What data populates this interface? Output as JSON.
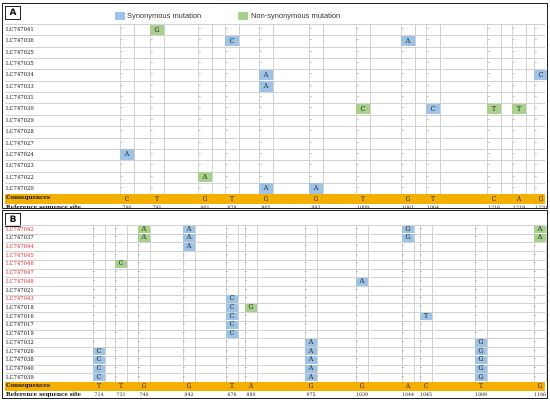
{
  "legend": {
    "synonymous": "Synonymous mutation",
    "nonsynonymous": "Non-synonymous mutation",
    "syn_color": "#9dc3e6",
    "non_color": "#a9d18e"
  },
  "panel_a": {
    "letter": "A",
    "rows": [
      "LC747041",
      "LC747036",
      "LC747025",
      "LC747035",
      "LC747034",
      "LC747033",
      "LC747031",
      "LC747030",
      "LC747029",
      "LC747028",
      "LC747027",
      "LC747024",
      "LC747023",
      "LC747022",
      "LC747020"
    ],
    "consequences_label": "Consequences",
    "ref_label": "Reference sequence site",
    "consensus": [
      "C",
      "T",
      "G",
      "T",
      "G",
      "G",
      "T",
      "G",
      "T",
      "C",
      "A",
      "G"
    ],
    "sites": [
      "780",
      "791",
      "861",
      "878",
      "905",
      "983",
      "1009",
      "1061",
      "1064",
      "1216",
      "1219",
      "1220"
    ],
    "mutations": [
      {
        "row": 0,
        "col": 1,
        "base": "G",
        "type": "non"
      },
      {
        "row": 1,
        "col": 3,
        "base": "C",
        "type": "syn"
      },
      {
        "row": 1,
        "col": 7,
        "base": "A",
        "type": "syn"
      },
      {
        "row": 4,
        "col": 4,
        "base": "A",
        "type": "syn"
      },
      {
        "row": 4,
        "col": 11,
        "base": "C",
        "type": "syn"
      },
      {
        "row": 5,
        "col": 4,
        "base": "A",
        "type": "syn"
      },
      {
        "row": 7,
        "col": 6,
        "base": "C",
        "type": "non"
      },
      {
        "row": 7,
        "col": 8,
        "base": "C",
        "type": "syn"
      },
      {
        "row": 7,
        "col": 9,
        "base": "T",
        "type": "non"
      },
      {
        "row": 7,
        "col": 10,
        "base": "T",
        "type": "non"
      },
      {
        "row": 11,
        "col": 0,
        "base": "A",
        "type": "syn"
      },
      {
        "row": 13,
        "col": 2,
        "base": "A",
        "type": "non"
      },
      {
        "row": 14,
        "col": 4,
        "base": "A",
        "type": "syn"
      },
      {
        "row": 14,
        "col": 5,
        "base": "A",
        "type": "syn"
      }
    ]
  },
  "panel_b": {
    "letter": "B",
    "rows": [
      "LC747042",
      "LC747037",
      "LC747044",
      "LC747045",
      "LC747046",
      "LC747047",
      "LC747048",
      "LC747021",
      "LC747043",
      "LC747018",
      "LC747016",
      "LC747017",
      "LC747019",
      "LC747032",
      "LC747026",
      "LC747038",
      "LC747040",
      "LC747039"
    ],
    "red_rows": [
      0,
      2,
      3,
      4,
      5,
      6,
      8
    ],
    "consequences_label": "Consequences",
    "ref_label": "Reference sequence site",
    "consensus": [
      "T",
      "T",
      "G",
      "G",
      "T",
      "A",
      "G",
      "G",
      "A",
      "C",
      "T",
      "G"
    ],
    "sites": [
      "714",
      "731",
      "740",
      "842",
      "876",
      "880",
      "975",
      "1039",
      "1044",
      "1045",
      "1089",
      "1186"
    ],
    "mutations": [
      {
        "row": 0,
        "col": 2,
        "base": "A",
        "type": "non"
      },
      {
        "row": 0,
        "col": 3,
        "base": "A",
        "type": "syn"
      },
      {
        "row": 0,
        "col": 8,
        "base": "G",
        "type": "syn"
      },
      {
        "row": 0,
        "col": 11,
        "base": "A",
        "type": "non"
      },
      {
        "row": 1,
        "col": 2,
        "base": "A",
        "type": "non"
      },
      {
        "row": 1,
        "col": 3,
        "base": "A",
        "type": "syn"
      },
      {
        "row": 1,
        "col": 8,
        "base": "G",
        "type": "syn"
      },
      {
        "row": 1,
        "col": 11,
        "base": "A",
        "type": "non"
      },
      {
        "row": 2,
        "col": 3,
        "base": "A",
        "type": "syn"
      },
      {
        "row": 4,
        "col": 1,
        "base": "C",
        "type": "non"
      },
      {
        "row": 6,
        "col": 7,
        "base": "A",
        "type": "syn"
      },
      {
        "row": 8,
        "col": 4,
        "base": "C",
        "type": "syn"
      },
      {
        "row": 9,
        "col": 4,
        "base": "C",
        "type": "syn"
      },
      {
        "row": 9,
        "col": 5,
        "base": "G",
        "type": "non"
      },
      {
        "row": 10,
        "col": 4,
        "base": "C",
        "type": "syn"
      },
      {
        "row": 10,
        "col": 9,
        "base": "T",
        "type": "syn"
      },
      {
        "row": 11,
        "col": 4,
        "base": "C",
        "type": "syn"
      },
      {
        "row": 12,
        "col": 4,
        "base": "C",
        "type": "syn"
      },
      {
        "row": 13,
        "col": 6,
        "base": "A",
        "type": "syn"
      },
      {
        "row": 13,
        "col": 10,
        "base": "G",
        "type": "syn"
      },
      {
        "row": 14,
        "col": 0,
        "base": "C",
        "type": "syn"
      },
      {
        "row": 14,
        "col": 6,
        "base": "A",
        "type": "syn"
      },
      {
        "row": 14,
        "col": 10,
        "base": "G",
        "type": "syn"
      },
      {
        "row": 15,
        "col": 0,
        "base": "C",
        "type": "syn"
      },
      {
        "row": 15,
        "col": 6,
        "base": "A",
        "type": "syn"
      },
      {
        "row": 15,
        "col": 10,
        "base": "G",
        "type": "syn"
      },
      {
        "row": 16,
        "col": 0,
        "base": "C",
        "type": "syn"
      },
      {
        "row": 16,
        "col": 6,
        "base": "A",
        "type": "syn"
      },
      {
        "row": 16,
        "col": 10,
        "base": "G",
        "type": "syn"
      },
      {
        "row": 17,
        "col": 0,
        "base": "C",
        "type": "syn"
      },
      {
        "row": 17,
        "col": 6,
        "base": "A",
        "type": "syn"
      },
      {
        "row": 17,
        "col": 10,
        "base": "G",
        "type": "syn"
      }
    ]
  }
}
